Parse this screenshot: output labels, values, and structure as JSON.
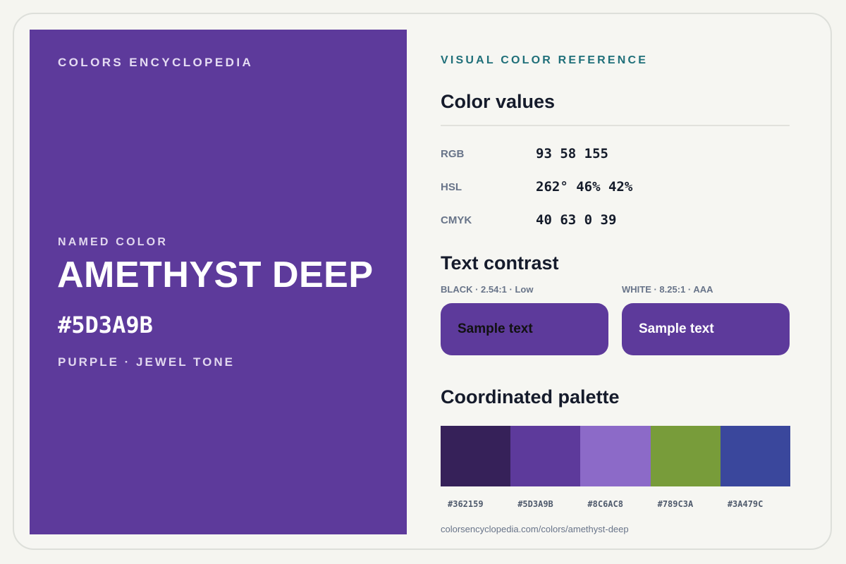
{
  "hero": {
    "brand": "COLORS ENCYCLOPEDIA",
    "kicker": "NAMED COLOR",
    "name": "AMETHYST DEEP",
    "hex": "#5D3A9B",
    "family": "PURPLE · JEWEL TONE",
    "color": "#5D3A9B"
  },
  "reference": {
    "eyebrow": "VISUAL COLOR REFERENCE",
    "values_title": "Color values",
    "values": [
      {
        "label": "RGB",
        "value": "93 58 155"
      },
      {
        "label": "HSL",
        "value": "262° 46% 42%"
      },
      {
        "label": "CMYK",
        "value": "40 63 0 39"
      }
    ],
    "contrast_title": "Text contrast",
    "contrast": [
      {
        "label": "BLACK · 2.54:1 · Low",
        "sample": "Sample text",
        "text_color": "#111111"
      },
      {
        "label": "WHITE · 8.25:1 · AAA",
        "sample": "Sample text",
        "text_color": "#ffffff"
      }
    ],
    "palette_title": "Coordinated palette",
    "palette": [
      {
        "hex": "#362159"
      },
      {
        "hex": "#5D3A9B"
      },
      {
        "hex": "#8C6AC8"
      },
      {
        "hex": "#789C3A"
      },
      {
        "hex": "#3A479C"
      }
    ],
    "url": "colorsencyclopedia.com/colors/amethyst-deep"
  }
}
